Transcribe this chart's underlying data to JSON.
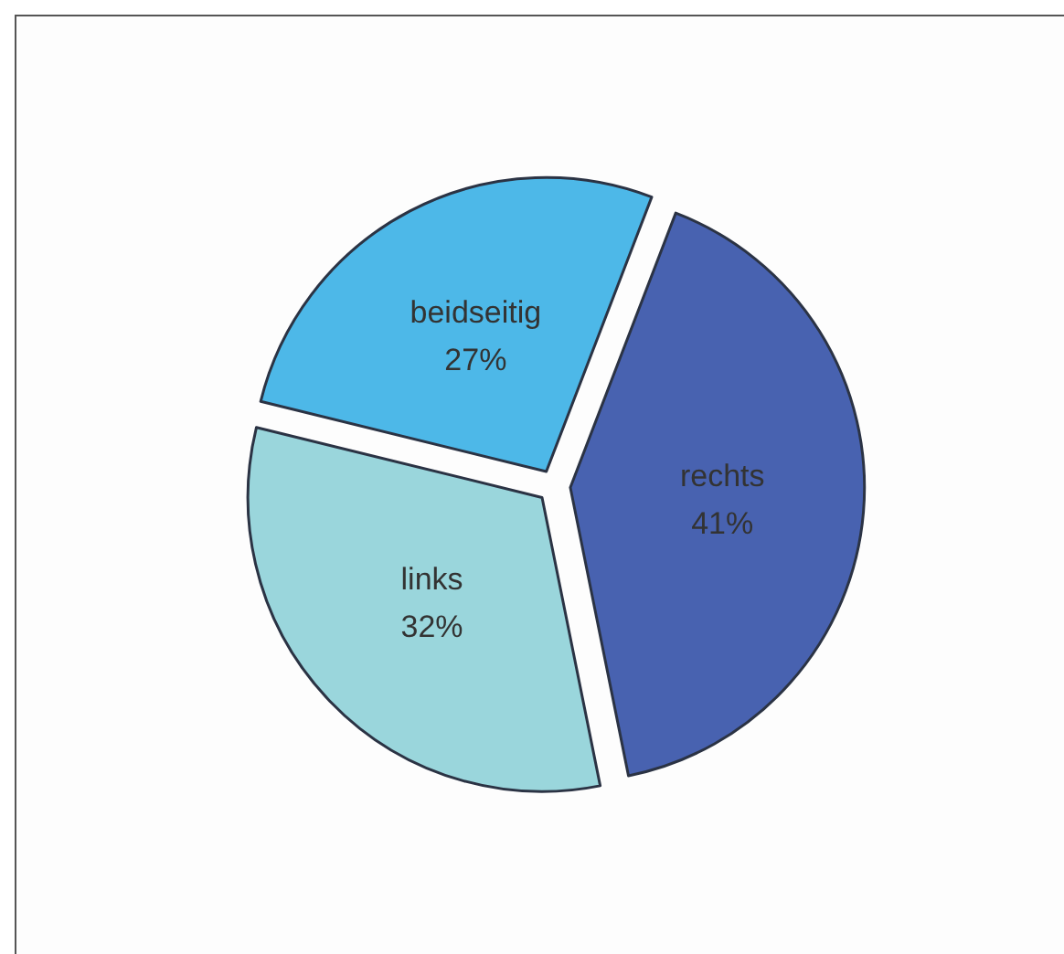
{
  "chart_data": {
    "type": "pie",
    "categories": [
      "rechts",
      "links",
      "beidseitig"
    ],
    "values": [
      41,
      32,
      27
    ],
    "colors": [
      "#4862b0",
      "#9ad6dc",
      "#4db8e8"
    ],
    "value_labels": [
      "41%",
      "32%",
      "27%"
    ],
    "legend": false
  }
}
